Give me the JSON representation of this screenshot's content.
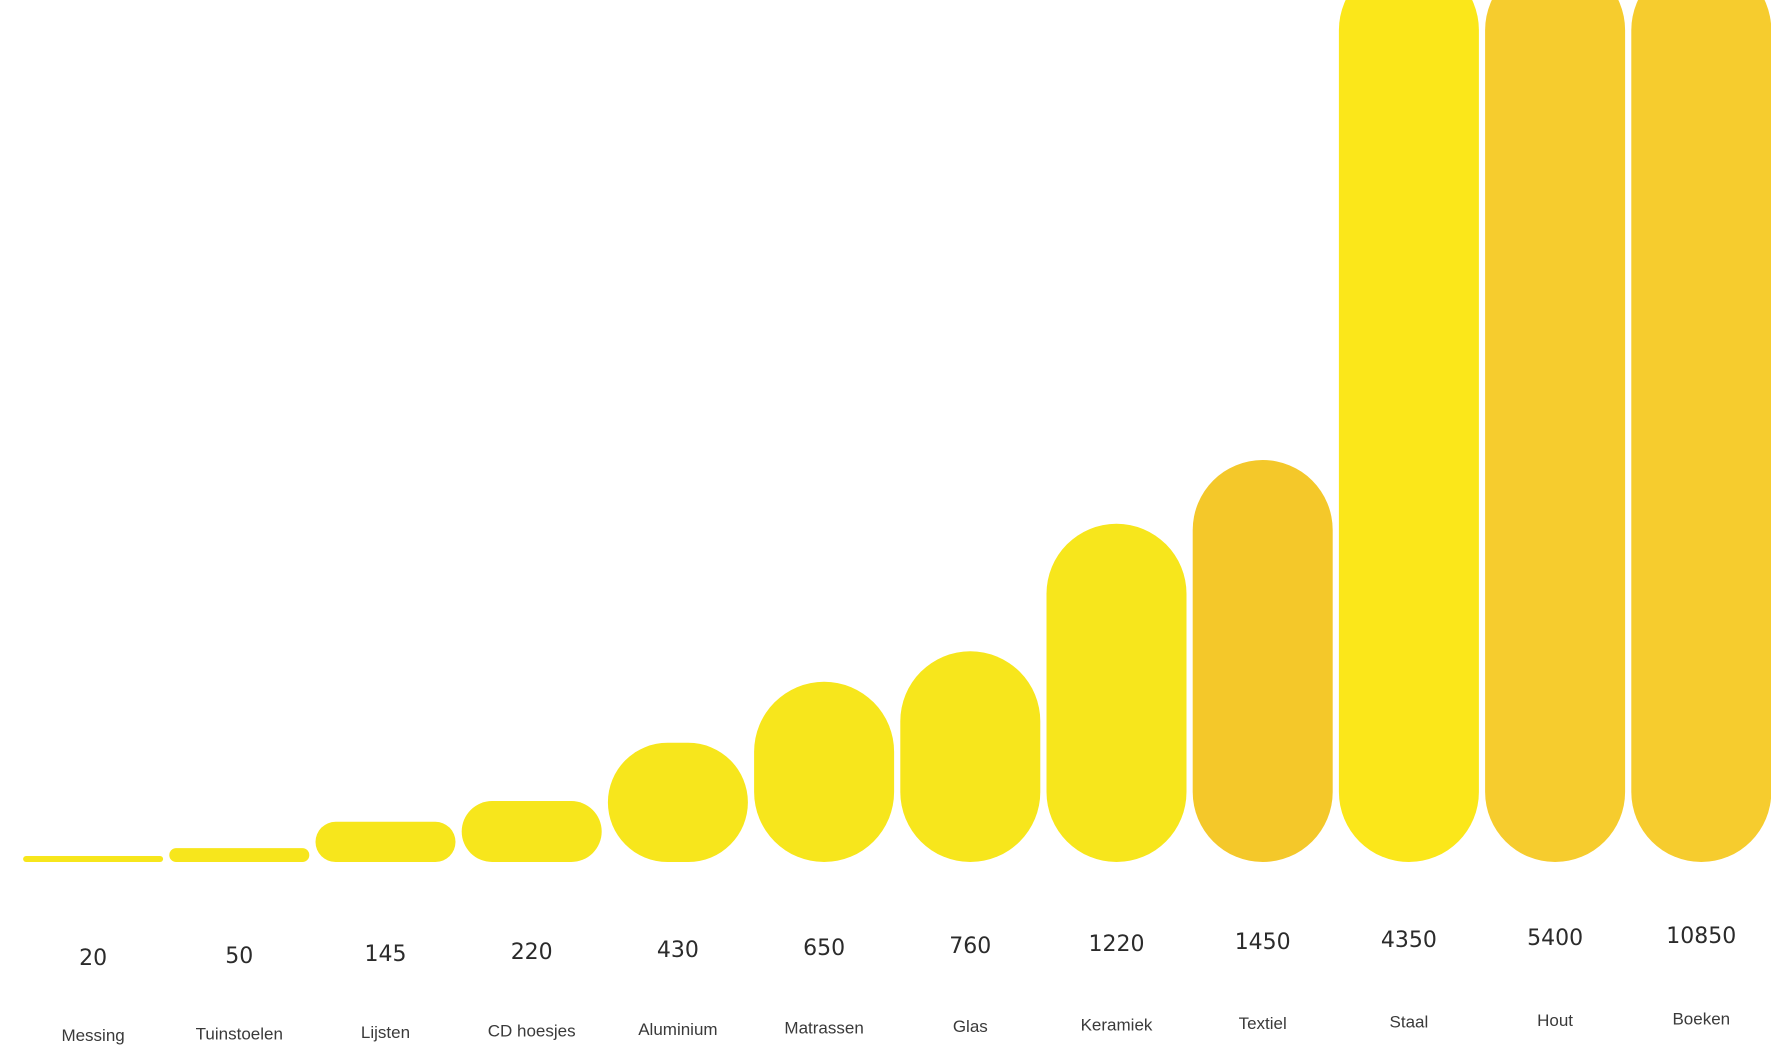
{
  "chart_data": {
    "type": "bar",
    "title": "",
    "xlabel": "",
    "ylabel": "",
    "categories": [
      "Messing",
      "Tuinstoelen",
      "Lijsten",
      "CD hoesjes",
      "Aluminium",
      "Matrassen",
      "Glas",
      "Keramiek",
      "Textiel",
      "Staal",
      "Hout",
      "Boeken"
    ],
    "values": [
      20,
      50,
      145,
      220,
      430,
      650,
      760,
      1220,
      1450,
      4350,
      5400,
      10850
    ],
    "value_labels": [
      "20",
      "50",
      "145",
      "220",
      "430",
      "650",
      "760",
      "1220",
      "1450",
      "4350",
      "5400",
      "10850"
    ],
    "colors": [
      "#f7e61c",
      "#f7e61c",
      "#f7e61c",
      "#f7e61c",
      "#f7e61c",
      "#f7e61c",
      "#f7e61c",
      "#f7e61c",
      "#f4c82a",
      "#fbe71a",
      "#f6cc2e",
      "#f6cc2e"
    ],
    "grid": false,
    "legend": "none"
  }
}
